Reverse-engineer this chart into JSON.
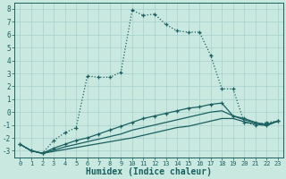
{
  "xlabel": "Humidex (Indice chaleur)",
  "bg_color": "#c8e8e0",
  "grid_color": "#a8d0cc",
  "line_color": "#1a6060",
  "xlim": [
    -0.5,
    23.5
  ],
  "ylim": [
    -3.5,
    8.5
  ],
  "xticks": [
    0,
    1,
    2,
    3,
    4,
    5,
    6,
    7,
    8,
    9,
    10,
    11,
    12,
    13,
    14,
    15,
    16,
    17,
    18,
    19,
    20,
    21,
    22,
    23
  ],
  "yticks": [
    -3,
    -2,
    -1,
    0,
    1,
    2,
    3,
    4,
    5,
    6,
    7,
    8
  ],
  "series1_x": [
    0,
    1,
    2,
    3,
    4,
    5,
    6,
    7,
    8,
    9,
    10,
    11,
    12,
    13,
    14,
    15,
    16,
    17,
    18,
    19,
    20,
    21,
    22,
    23
  ],
  "series1_y": [
    -2.5,
    -3.0,
    -3.2,
    -2.2,
    -1.6,
    -1.2,
    2.8,
    2.7,
    2.7,
    3.1,
    7.9,
    7.5,
    7.6,
    6.8,
    6.3,
    6.2,
    6.2,
    4.4,
    1.8,
    1.8,
    -0.8,
    -1.0,
    -0.8,
    -0.7
  ],
  "series2_x": [
    0,
    1,
    2,
    3,
    4,
    5,
    6,
    7,
    8,
    9,
    10,
    11,
    12,
    13,
    14,
    15,
    16,
    17,
    18,
    19,
    20,
    21,
    22,
    23
  ],
  "series2_y": [
    -2.5,
    -3.0,
    -3.2,
    -2.8,
    -2.5,
    -2.2,
    -2.0,
    -1.7,
    -1.4,
    -1.1,
    -0.8,
    -0.5,
    -0.3,
    -0.1,
    0.1,
    0.3,
    0.4,
    0.6,
    0.7,
    -0.3,
    -0.5,
    -0.8,
    -1.0,
    -0.7
  ],
  "series3_x": [
    0,
    1,
    2,
    3,
    4,
    5,
    6,
    7,
    8,
    9,
    10,
    11,
    12,
    13,
    14,
    15,
    16,
    17,
    18,
    19,
    20,
    21,
    22,
    23
  ],
  "series3_y": [
    -2.5,
    -3.0,
    -3.2,
    -2.95,
    -2.7,
    -2.5,
    -2.3,
    -2.1,
    -1.9,
    -1.7,
    -1.4,
    -1.2,
    -1.0,
    -0.8,
    -0.6,
    -0.4,
    -0.2,
    0.0,
    0.1,
    -0.3,
    -0.6,
    -0.85,
    -0.95,
    -0.7
  ],
  "series4_x": [
    0,
    1,
    2,
    3,
    4,
    5,
    6,
    7,
    8,
    9,
    10,
    11,
    12,
    13,
    14,
    15,
    16,
    17,
    18,
    19,
    20,
    21,
    22,
    23
  ],
  "series4_y": [
    -2.5,
    -3.0,
    -3.2,
    -3.05,
    -2.9,
    -2.75,
    -2.6,
    -2.45,
    -2.3,
    -2.15,
    -2.0,
    -1.8,
    -1.6,
    -1.4,
    -1.2,
    -1.1,
    -0.9,
    -0.7,
    -0.5,
    -0.5,
    -0.75,
    -0.95,
    -1.05,
    -0.7
  ]
}
